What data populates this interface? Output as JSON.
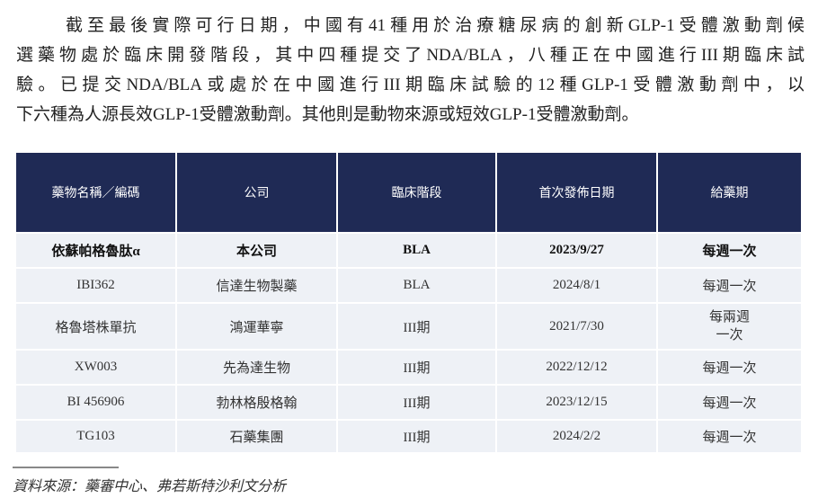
{
  "paragraph": {
    "lines": [
      "截至最後實際可行日期，中國有41種用於治療糖尿病的創新GLP-1受體激動劑候",
      "選藥物處於臨床開發階段，其中四種提交了NDA/BLA，八種正在中國進行III期臨床試",
      "驗。已提交NDA/BLA或處於在中國進行III期臨床試驗的12種GLP-1受體激動劑中，以",
      "下六種為人源長效GLP-1受體激動劑。其他則是動物來源或短效GLP-1受體激動劑。"
    ]
  },
  "table": {
    "headers": [
      "藥物名稱／編碼",
      "公司",
      "臨床階段",
      "首次發佈日期",
      "給藥期"
    ],
    "rows": [
      [
        "依蘇帕格魯肽α",
        "本公司",
        "BLA",
        "2023/9/27",
        "每週一次"
      ],
      [
        "IBI362",
        "信達生物製藥",
        "BLA",
        "2024/8/1",
        "每週一次"
      ],
      [
        "格魯塔株單抗",
        "鴻運華寧",
        "III期",
        "2021/7/30",
        "每兩週\n一次"
      ],
      [
        "XW003",
        "先為達生物",
        "III期",
        "2022/12/12",
        "每週一次"
      ],
      [
        "BI 456906",
        "勃林格殷格翰",
        "III期",
        "2023/12/15",
        "每週一次"
      ],
      [
        "TG103",
        "石藥集團",
        "III期",
        "2024/2/2",
        "每週一次"
      ]
    ]
  },
  "source": "資料來源：藥審中心、弗若斯特沙利文分析",
  "colors": {
    "header_bg": "#1f2a55",
    "cell_bg": "#eef1f6"
  }
}
